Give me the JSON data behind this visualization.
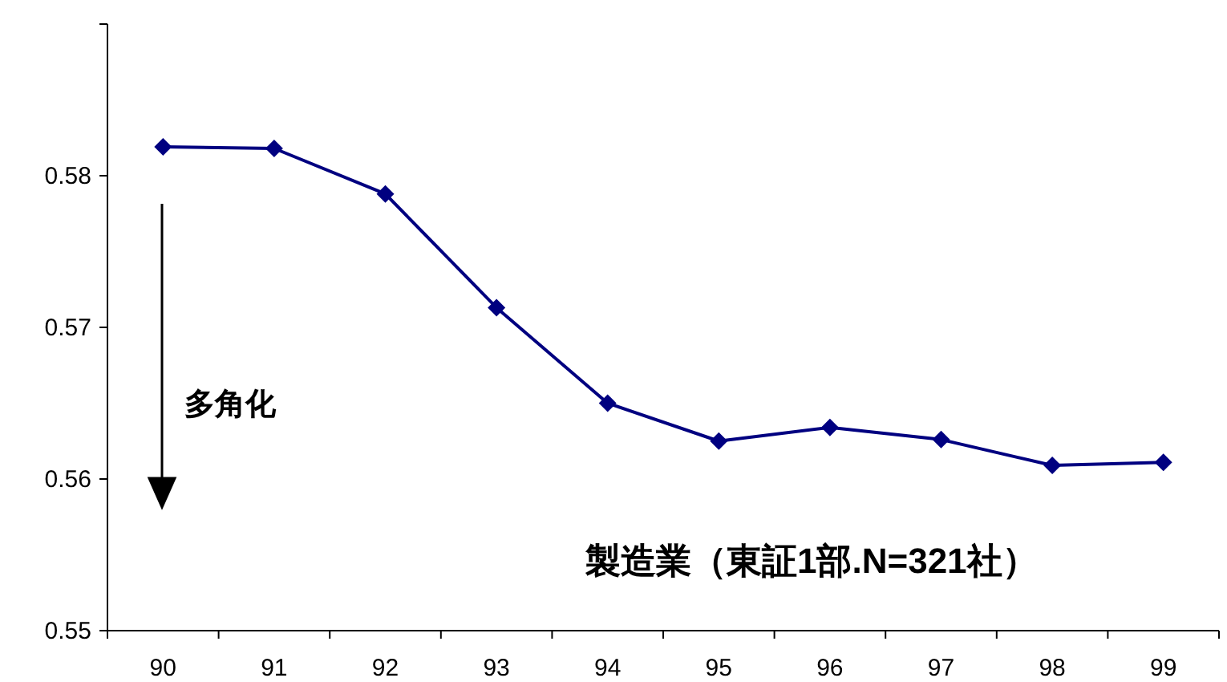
{
  "chart_data": {
    "type": "line",
    "categories": [
      "90",
      "91",
      "92",
      "93",
      "94",
      "95",
      "96",
      "97",
      "98",
      "99"
    ],
    "series": [
      {
        "color": "#000080",
        "values": [
          0.5819,
          0.5818,
          0.5788,
          0.5713,
          0.565,
          0.5625,
          0.5634,
          0.5626,
          0.5609,
          0.5611
        ]
      }
    ],
    "ylim": [
      0.55,
      0.59
    ],
    "yticks": [
      0.55,
      0.56,
      0.57,
      0.58,
      {
        "value": 0.59,
        "label": null
      }
    ],
    "marker": "diamond",
    "line_style": "solid",
    "annotations": [
      "多角化",
      "製造業（東証1部.N=321社）"
    ]
  }
}
